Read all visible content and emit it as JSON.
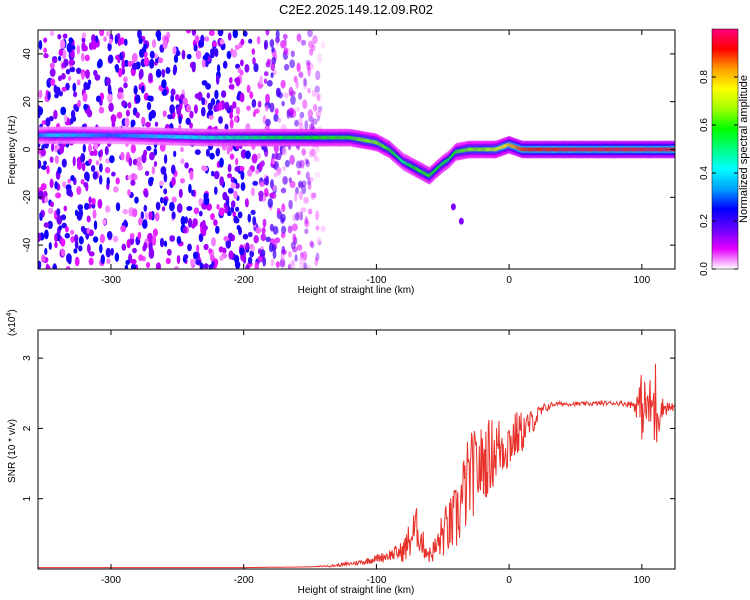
{
  "chart_data": [
    {
      "type": "heatmap",
      "title": "C2E2.2025.149.12.09.R02",
      "xlabel": "Height of straight line (km)",
      "ylabel": "Frequency (Hz)",
      "xlim": [
        -355,
        125
      ],
      "ylim": [
        -50,
        50
      ],
      "xticks": [
        -300,
        -200,
        -100,
        0,
        100
      ],
      "yticks": [
        -40,
        -20,
        0,
        20,
        40
      ],
      "colorbar": {
        "label": "Normalized spectral amplitude",
        "range": [
          0,
          1
        ],
        "ticks": [
          "0.0",
          "0.2",
          "0.4",
          "0.6",
          "0.8"
        ],
        "tick_values": [
          0,
          0.2,
          0.4,
          0.6,
          0.8
        ],
        "colormap": [
          "#ffffff",
          "#e600ff",
          "#6600ff",
          "#0000ff",
          "#00a0ff",
          "#00ffff",
          "#00ff80",
          "#00ff00",
          "#a0ff00",
          "#ffff00",
          "#ffa000",
          "#ff0000",
          "#ff0080"
        ]
      },
      "noise_region": {
        "x_range": [
          -355,
          -150
        ],
        "amplitude": 0.15
      },
      "ridge": {
        "x": [
          -355,
          -345,
          -300,
          -230,
          -200,
          -180,
          -160,
          -140,
          -120,
          -110,
          -100,
          -90,
          -80,
          -70,
          -60,
          -50,
          -45,
          -40,
          -30,
          -20,
          -10,
          -5,
          0,
          10,
          50,
          100,
          125
        ],
        "y": [
          6,
          6,
          6,
          5,
          5,
          5,
          5,
          5,
          5,
          4,
          3,
          0,
          -5,
          -8,
          -11,
          -6,
          -4,
          -1,
          0,
          0,
          0,
          1,
          2,
          0,
          0,
          0,
          0
        ],
        "amplitude": [
          0.3,
          0.4,
          0.3,
          0.45,
          0.5,
          0.55,
          0.55,
          0.6,
          0.6,
          0.65,
          0.65,
          0.6,
          0.5,
          0.6,
          0.6,
          0.55,
          0.55,
          0.6,
          0.65,
          0.65,
          0.7,
          0.75,
          0.8,
          0.9,
          0.95,
          0.95,
          0.95
        ]
      },
      "scatter_points": [
        {
          "x": -42,
          "y": -24,
          "amplitude": 0.15
        },
        {
          "x": -36,
          "y": -30,
          "amplitude": 0.15
        }
      ]
    },
    {
      "type": "line",
      "xlabel": "Height of straight line (km)",
      "ylabel": "SNR (10 * v/v)",
      "exponent_label": "(x10",
      "exponent_power": "4",
      "xlim": [
        -355,
        125
      ],
      "ylim": [
        0,
        3.4
      ],
      "xticks": [
        -300,
        -200,
        -100,
        0,
        100
      ],
      "yticks": [
        1,
        2,
        3
      ],
      "series": [
        {
          "color": "#e8312a",
          "x": [
            -355,
            -300,
            -250,
            -200,
            -150,
            -130,
            -110,
            -100,
            -90,
            -80,
            -75,
            -70,
            -65,
            -60,
            -55,
            -50,
            -45,
            -40,
            -35,
            -30,
            -25,
            -20,
            -15,
            -10,
            -5,
            0,
            5,
            10,
            15,
            20,
            25,
            30,
            35,
            40,
            50,
            60,
            70,
            80,
            90,
            95,
            100,
            105,
            110,
            115,
            125
          ],
          "y": [
            0.02,
            0.02,
            0.02,
            0.02,
            0.03,
            0.05,
            0.1,
            0.15,
            0.2,
            0.25,
            0.4,
            0.6,
            0.35,
            0.2,
            0.3,
            0.5,
            0.6,
            0.7,
            1.0,
            1.3,
            1.4,
            1.5,
            1.6,
            1.7,
            1.75,
            1.8,
            1.9,
            1.95,
            2.05,
            2.15,
            2.25,
            2.32,
            2.35,
            2.35,
            2.35,
            2.35,
            2.36,
            2.36,
            2.35,
            2.33,
            2.32,
            2.3,
            2.3,
            2.3,
            2.3
          ],
          "noise_amp": [
            0,
            0,
            0,
            0,
            0,
            0.02,
            0.04,
            0.06,
            0.08,
            0.15,
            0.3,
            0.3,
            0.2,
            0.12,
            0.2,
            0.35,
            0.4,
            0.5,
            0.6,
            0.65,
            0.6,
            0.55,
            0.55,
            0.5,
            0.45,
            0.4,
            0.35,
            0.3,
            0.2,
            0.15,
            0.1,
            0.05,
            0.03,
            0.03,
            0.03,
            0.03,
            0.03,
            0.03,
            0.04,
            0.1,
            0.5,
            0.3,
            0.8,
            0.15,
            0.04
          ]
        }
      ]
    }
  ]
}
